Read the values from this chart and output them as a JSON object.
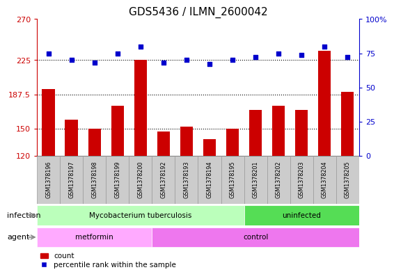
{
  "title": "GDS5436 / ILMN_2600042",
  "samples": [
    "GSM1378196",
    "GSM1378197",
    "GSM1378198",
    "GSM1378199",
    "GSM1378200",
    "GSM1378192",
    "GSM1378193",
    "GSM1378194",
    "GSM1378195",
    "GSM1378201",
    "GSM1378202",
    "GSM1378203",
    "GSM1378204",
    "GSM1378205"
  ],
  "counts": [
    193,
    160,
    150,
    175,
    225,
    147,
    152,
    138,
    150,
    170,
    175,
    170,
    235,
    190
  ],
  "percentiles": [
    75,
    70,
    68,
    75,
    80,
    68,
    70,
    67,
    70,
    72,
    75,
    74,
    80,
    72
  ],
  "ylim_left": [
    120,
    270
  ],
  "ylim_right": [
    0,
    100
  ],
  "yticks_left": [
    120,
    150,
    187.5,
    225,
    270
  ],
  "yticks_right": [
    0,
    25,
    50,
    75,
    100
  ],
  "hlines": [
    150,
    187.5,
    225
  ],
  "bar_color": "#cc0000",
  "dot_color": "#0000cc",
  "left_axis_color": "#cc0000",
  "right_axis_color": "#0000cc",
  "infection_groups": [
    {
      "label": "Mycobacterium tuberculosis",
      "start": 0,
      "end": 9,
      "color": "#bbffbb"
    },
    {
      "label": "uninfected",
      "start": 9,
      "end": 14,
      "color": "#55dd55"
    }
  ],
  "agent_groups": [
    {
      "label": "metformin",
      "start": 0,
      "end": 5,
      "color": "#ffaaff"
    },
    {
      "label": "control",
      "start": 5,
      "end": 14,
      "color": "#ee77ee"
    }
  ],
  "infection_label": "infection",
  "agent_label": "agent",
  "legend_count": "count",
  "legend_percentile": "percentile rank within the sample",
  "tick_label_color_left": "#cc0000",
  "tick_label_color_right": "#0000cc",
  "title_fontsize": 11,
  "tick_fontsize": 8,
  "xtick_cell_color": "#cccccc",
  "xtick_cell_border": "#999999"
}
